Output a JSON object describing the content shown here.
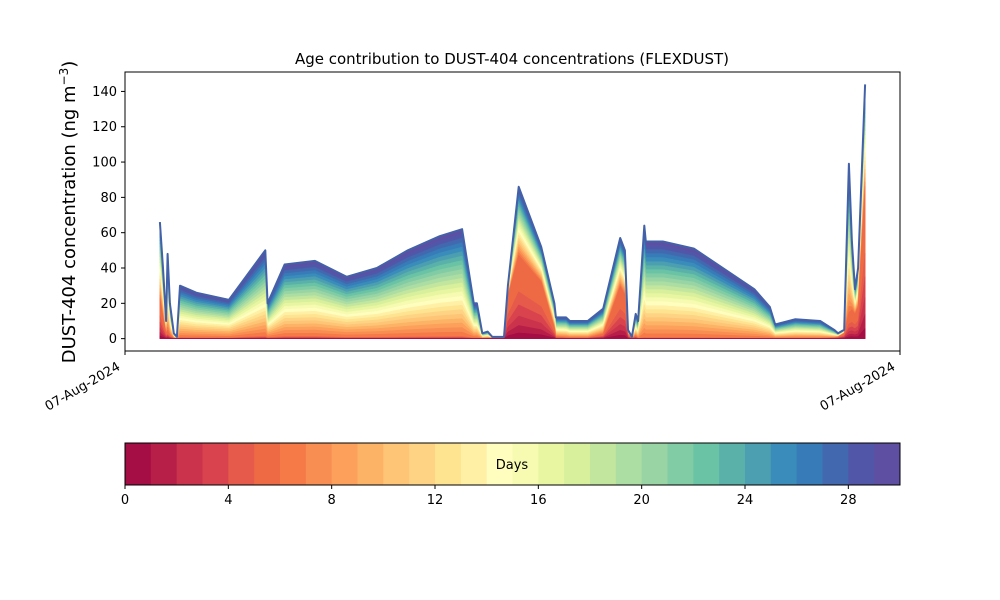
{
  "chart_data": {
    "type": "area",
    "subtype": "stacked-area",
    "title": "Age contribution to DUST-404 concentrations (FLEXDUST)",
    "xlabel": "",
    "ylabel": "DUST-404 concentration (ng m⁻³)",
    "ylabel_base": "DUST-404 concentration (ng m",
    "ylabel_sup": "−3",
    "ylabel_close": ")",
    "ylim": [
      -7,
      151
    ],
    "yticks": [
      0,
      20,
      40,
      60,
      80,
      100,
      120,
      140
    ],
    "ytick_labels": [
      "0",
      "20",
      "40",
      "60",
      "80",
      "100",
      "120",
      "140"
    ],
    "xlim": [
      0,
      1
    ],
    "xticks": [
      0,
      1
    ],
    "xtick_labels": [
      "07-Aug-2024",
      "07-Aug-2024"
    ],
    "grid": false,
    "series_note": "Total concentration stacked by age band (0-30 days, 1-day bands); young_share is approximate fraction in bands younger than ~6 days",
    "x": [
      0.045,
      0.049,
      0.053,
      0.055,
      0.058,
      0.063,
      0.067,
      0.071,
      0.092,
      0.134,
      0.181,
      0.184,
      0.206,
      0.245,
      0.286,
      0.325,
      0.365,
      0.406,
      0.435,
      0.45,
      0.454,
      0.461,
      0.468,
      0.474,
      0.484,
      0.489,
      0.494,
      0.508,
      0.537,
      0.554,
      0.556,
      0.569,
      0.574,
      0.597,
      0.617,
      0.639,
      0.645,
      0.649,
      0.654,
      0.659,
      0.662,
      0.67,
      0.672,
      0.694,
      0.734,
      0.812,
      0.832,
      0.839,
      0.865,
      0.897,
      0.915,
      0.92,
      0.928,
      0.934,
      0.938,
      0.942,
      0.946,
      0.955
    ],
    "total": [
      66,
      40,
      10,
      48,
      20,
      3,
      1,
      30,
      26,
      22,
      50,
      20,
      42,
      44,
      35,
      40,
      50,
      58,
      62,
      20,
      20,
      3,
      4,
      1,
      1,
      1,
      30,
      86,
      52,
      20,
      12,
      12,
      10,
      10,
      17,
      57,
      50,
      5,
      1,
      14,
      10,
      64,
      55,
      55,
      51,
      28,
      18,
      8,
      11,
      10,
      5,
      3,
      5,
      99,
      55,
      28,
      40,
      144
    ],
    "young_share": [
      0.35,
      0.3,
      0.3,
      0.1,
      0.1,
      0.1,
      0.1,
      0.02,
      0.02,
      0.02,
      0.03,
      0.03,
      0.03,
      0.03,
      0.02,
      0.02,
      0.02,
      0.02,
      0.02,
      0.02,
      0.02,
      0.05,
      0.05,
      0.3,
      0.3,
      0.4,
      0.8,
      0.55,
      0.62,
      0.3,
      0.08,
      0.05,
      0.05,
      0.05,
      0.15,
      0.52,
      0.5,
      0.5,
      0.3,
      0.1,
      0.02,
      0.01,
      0.01,
      0.01,
      0.01,
      0.01,
      0.01,
      0.02,
      0.02,
      0.02,
      0.1,
      0.3,
      0.6,
      0.15,
      0.3,
      0.5,
      0.45,
      0.6
    ],
    "colorbar": {
      "label": "Days",
      "range": [
        0,
        30
      ],
      "ticks": [
        0,
        4,
        8,
        12,
        16,
        20,
        24,
        28
      ],
      "tick_labels": [
        "0",
        "4",
        "8",
        "12",
        "16",
        "20",
        "24",
        "28"
      ],
      "colors": [
        "#a50d45",
        "#b81f48",
        "#cb334c",
        "#d8434d",
        "#e55a4a",
        "#ee6a45",
        "#f57a48",
        "#f98e52",
        "#fca05c",
        "#fdb366",
        "#fec576",
        "#fed384",
        "#fee391",
        "#fff0a5",
        "#fffebe",
        "#f6fbb1",
        "#e8f6a2",
        "#d8ef9c",
        "#c3e69f",
        "#acdda2",
        "#99d4a4",
        "#81cca5",
        "#6bc3a5",
        "#59b1a9",
        "#4b9fb0",
        "#3a8cba",
        "#377bb8",
        "#4268b0",
        "#5256a8",
        "#5e4fa2"
      ]
    },
    "outline_color": "#4361a8"
  }
}
